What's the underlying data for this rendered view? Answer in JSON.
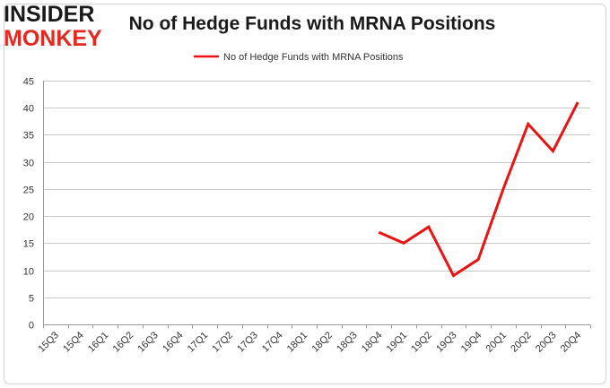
{
  "logo": {
    "line1": "INSIDER",
    "line2": "MONKEY"
  },
  "chart_data": {
    "type": "line",
    "title": "No of Hedge Funds with MRNA Positions",
    "xlabel": "",
    "ylabel": "",
    "categories": [
      "15Q3",
      "15Q4",
      "16Q1",
      "16Q2",
      "16Q3",
      "16Q4",
      "17Q1",
      "17Q2",
      "17Q3",
      "17Q4",
      "18Q1",
      "18Q2",
      "18Q3",
      "18Q4",
      "19Q1",
      "19Q2",
      "19Q3",
      "19Q4",
      "20Q1",
      "20Q2",
      "20Q3",
      "20Q4"
    ],
    "series": [
      {
        "name": "No of Hedge Funds with MRNA Positions",
        "color": "#ee1111",
        "values": [
          null,
          null,
          null,
          null,
          null,
          null,
          null,
          null,
          null,
          null,
          null,
          null,
          null,
          17,
          15,
          18,
          9,
          12,
          25,
          37,
          32,
          41
        ]
      }
    ],
    "ylim": [
      0,
      45
    ],
    "yticks": [
      0,
      5,
      10,
      15,
      20,
      25,
      30,
      35,
      40,
      45
    ],
    "grid": true,
    "legend": "top-center",
    "gridColor": "#c8c8c8",
    "frameColor": "#d0d0d0"
  }
}
